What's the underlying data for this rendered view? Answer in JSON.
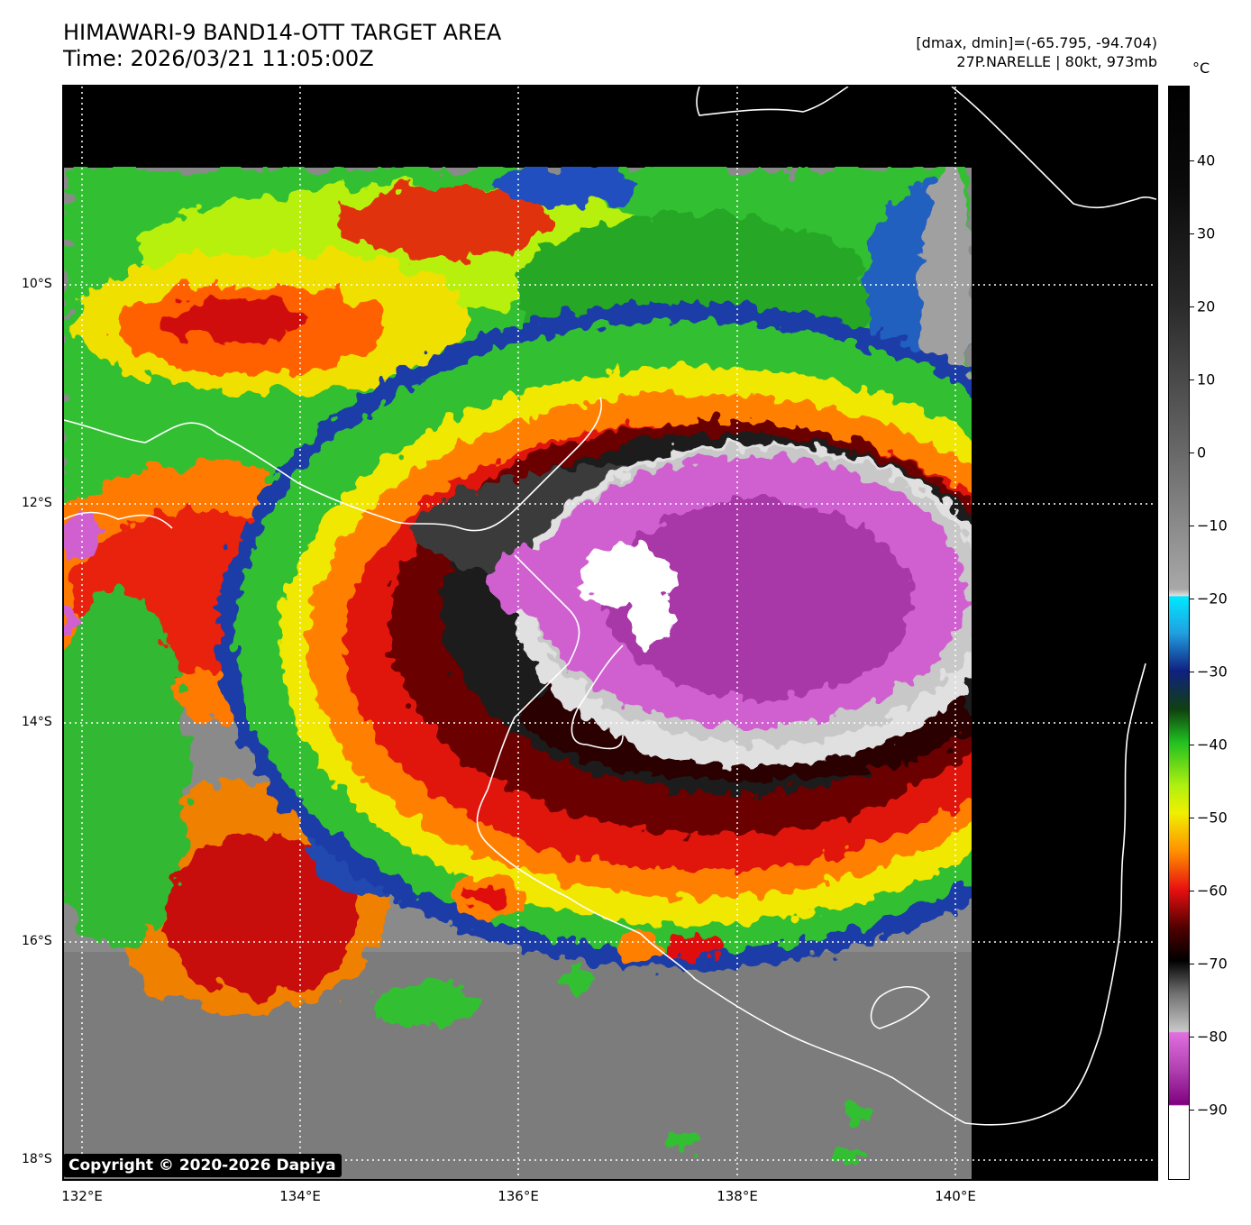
{
  "header": {
    "title": "HIMAWARI-9 BAND14-OTT TARGET AREA",
    "time": "Time: 2026/03/21 11:05:00Z",
    "dmax_dmin": "[dmax, dmin]=(-65.795, -94.704)",
    "storm_info": "27P.NARELLE | 80kt, 973mb"
  },
  "copyright": "Copyright © 2020-2026 Dapiya",
  "axes": {
    "lat_labels": [
      "10°S",
      "12°S",
      "14°S",
      "16°S",
      "18°S"
    ],
    "lon_labels": [
      "132°E",
      "134°E",
      "136°E",
      "138°E",
      "140°E"
    ]
  },
  "colorbar": {
    "unit": "°C",
    "ticks": [
      "40",
      "30",
      "20",
      "10",
      "0",
      "−10",
      "−20",
      "−30",
      "−40",
      "−50",
      "−60",
      "−70",
      "−80",
      "−90"
    ],
    "range": [
      -100,
      50
    ]
  },
  "colors": {
    "eye_wall_purple": "#c050c0",
    "coldest_white": "#ffffff",
    "ring_black": "#000000",
    "red": "#e82010",
    "orange": "#ff8000",
    "yellow": "#f0f000",
    "green": "#20c020",
    "blue": "#1040a0",
    "cyan": "#00e0ff",
    "gray": "#9a9a9a",
    "background": "#000000"
  }
}
